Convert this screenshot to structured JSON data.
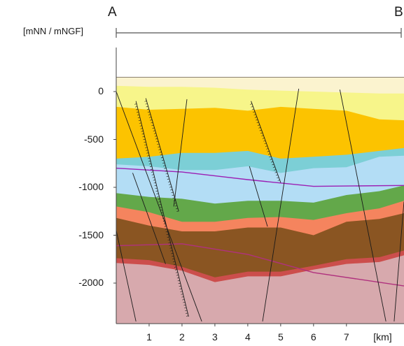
{
  "profile": {
    "start_label": "A",
    "end_label": "B",
    "vertical_unit": "[mNN / mNGF]",
    "x_unit": "[km]"
  },
  "chart_data": {
    "type": "area",
    "ylabel": "[mNN / mNGF]",
    "xlabel": "[km]",
    "y_ticks": [
      "0",
      "-500",
      "-1000",
      "-1500",
      "-2000"
    ],
    "x_ticks": [
      "1",
      "2",
      "3",
      "4",
      "5",
      "6",
      "7"
    ],
    "ylim": [
      -2400,
      200
    ],
    "xlim": [
      0,
      8.75
    ],
    "grid": false,
    "x": [
      0.0,
      1.0,
      2.0,
      3.0,
      4.0,
      5.0,
      6.0,
      7.0,
      8.0,
      8.75
    ],
    "layers": [
      {
        "color": "#fbf3cf",
        "top": [
          150,
          150,
          150,
          150,
          150,
          150,
          150,
          150,
          150,
          150
        ]
      },
      {
        "color": "#f7f58a",
        "top": [
          60,
          50,
          50,
          40,
          20,
          10,
          0,
          -10,
          -20,
          -20
        ]
      },
      {
        "color": "#fcc300",
        "top": [
          -160,
          -190,
          -180,
          -170,
          -200,
          -160,
          -180,
          -200,
          -290,
          -300
        ]
      },
      {
        "color": "#7ccfd6",
        "top": [
          -700,
          -680,
          -640,
          -640,
          -620,
          -700,
          -680,
          -660,
          -620,
          -590
        ]
      },
      {
        "color": "#b3ddf5",
        "top": [
          -760,
          -780,
          -820,
          -820,
          -780,
          -850,
          -800,
          -790,
          -680,
          -670
        ]
      },
      {
        "color": "#63a84a",
        "top": [
          -1060,
          -1100,
          -1120,
          -1170,
          -1140,
          -1140,
          -1160,
          -1080,
          -1040,
          -980
        ]
      },
      {
        "color": "#f5845e",
        "top": [
          -1200,
          -1260,
          -1360,
          -1360,
          -1320,
          -1310,
          -1340,
          -1270,
          -1220,
          -1140
        ]
      },
      {
        "color": "#8a5522",
        "top": [
          -1320,
          -1400,
          -1460,
          -1460,
          -1420,
          -1420,
          -1500,
          -1360,
          -1330,
          -1270
        ]
      },
      {
        "color": "#cc4e4c",
        "top": [
          -1740,
          -1760,
          -1830,
          -1940,
          -1880,
          -1880,
          -1820,
          -1750,
          -1730,
          -1660
        ]
      },
      {
        "color": "#d7a9ad",
        "top": [
          -1790,
          -1810,
          -1870,
          -1990,
          -1930,
          -1930,
          -1860,
          -1800,
          -1780,
          -1710
        ]
      }
    ],
    "horizons": [
      {
        "name": "",
        "color": "#9b1fb4",
        "x": [
          0.0,
          2.0,
          4.0,
          6.0,
          8.75
        ],
        "y": [
          -800,
          -840,
          -920,
          -990,
          -980
        ]
      },
      {
        "name": "",
        "color": "#b0317e",
        "x": [
          0.0,
          2.0,
          4.0,
          6.0,
          8.75
        ],
        "y": [
          -1610,
          -1590,
          -1700,
          -1890,
          -2030
        ]
      }
    ],
    "faults": [
      {
        "x1": 0.0,
        "y1": 0,
        "x2": 2.6,
        "y2": -2400,
        "style": "solid"
      },
      {
        "x1": 0.6,
        "y1": -100,
        "x2": 2.2,
        "y2": -2350,
        "style": "hatched"
      },
      {
        "x1": 0.9,
        "y1": -70,
        "x2": 1.9,
        "y2": -1250,
        "style": "hatched"
      },
      {
        "x1": 0.5,
        "y1": -850,
        "x2": 1.5,
        "y2": -1800,
        "style": "solid"
      },
      {
        "x1": 2.15,
        "y1": -80,
        "x2": 1.75,
        "y2": -1200,
        "style": "solid"
      },
      {
        "x1": 0.0,
        "y1": -1450,
        "x2": 0.6,
        "y2": -2400,
        "style": "solid"
      },
      {
        "x1": 4.05,
        "y1": -780,
        "x2": 4.6,
        "y2": -1410,
        "style": "solid"
      },
      {
        "x1": 4.1,
        "y1": -100,
        "x2": 5.0,
        "y2": -950,
        "style": "hatched"
      },
      {
        "x1": 5.55,
        "y1": 30,
        "x2": 4.45,
        "y2": -2400,
        "style": "solid"
      },
      {
        "x1": 6.8,
        "y1": 20,
        "x2": 8.2,
        "y2": -2400,
        "style": "solid"
      },
      {
        "x1": 8.75,
        "y1": -1150,
        "x2": 8.45,
        "y2": -2400,
        "style": "solid"
      }
    ]
  }
}
